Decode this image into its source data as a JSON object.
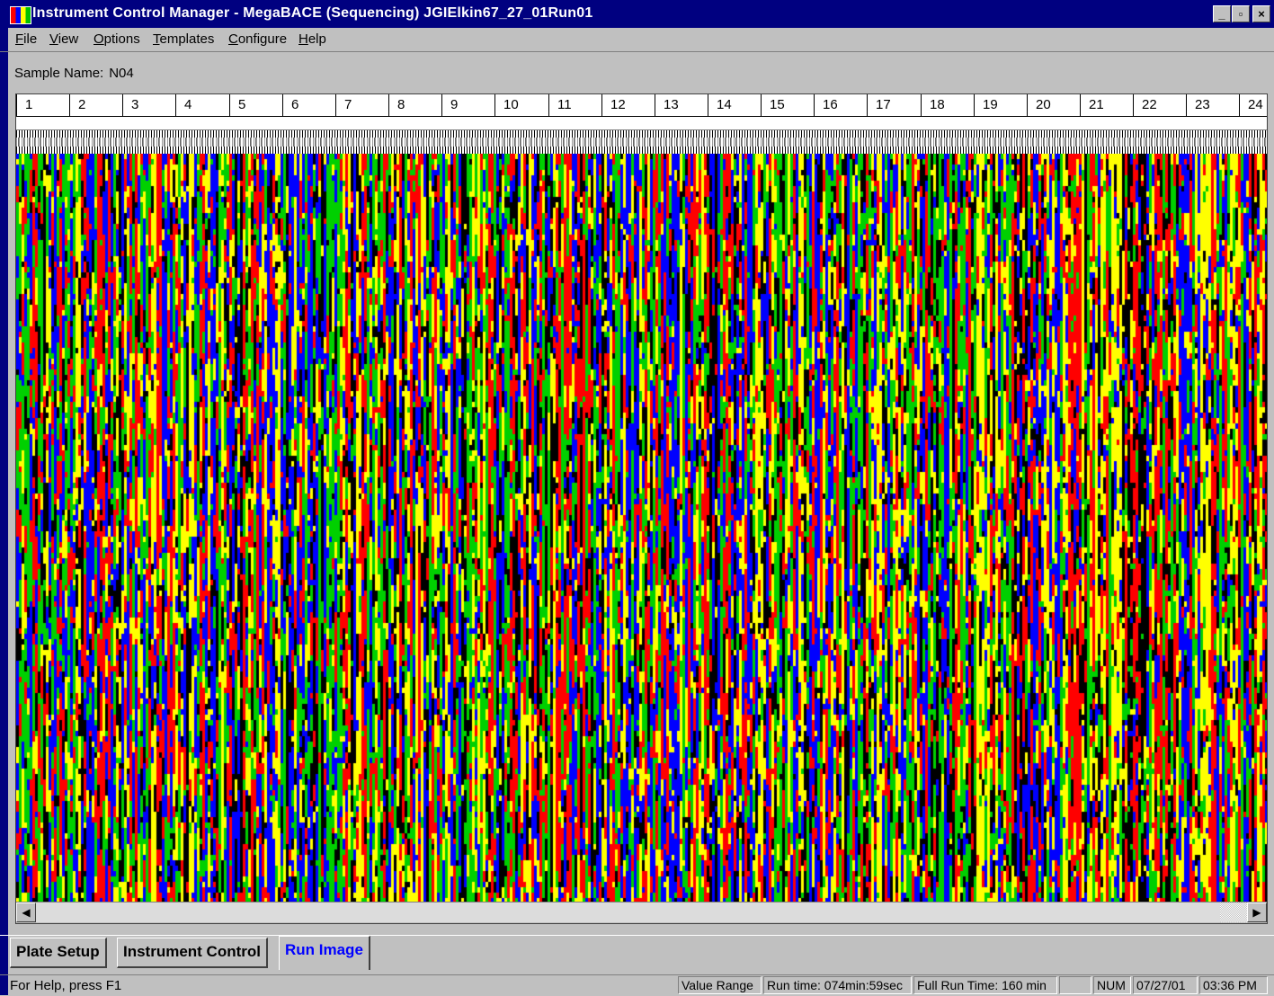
{
  "window": {
    "title": "Instrument Control Manager - MegaBACE (Sequencing) JGIElkin67_27_01Run01",
    "minimize_glyph": "_",
    "restore_glyph": "▫",
    "close_glyph": "×"
  },
  "menu": [
    {
      "accel": "F",
      "rest": "ile"
    },
    {
      "accel": "V",
      "rest": "iew"
    },
    {
      "accel": "O",
      "rest": "ptions"
    },
    {
      "accel": "T",
      "rest": "emplates"
    },
    {
      "accel": "C",
      "rest": "onfigure"
    },
    {
      "accel": "H",
      "rest": "elp"
    }
  ],
  "sample": {
    "label": "Sample Name:",
    "value": "N04"
  },
  "capillaries": [
    "1",
    "2",
    "3",
    "4",
    "5",
    "6",
    "7",
    "8",
    "9",
    "10",
    "11",
    "12",
    "13",
    "14",
    "15",
    "16",
    "17",
    "18",
    "19",
    "20",
    "21",
    "22",
    "23",
    "24"
  ],
  "run_image": {
    "channel_colors": [
      "#ff0000",
      "#0000ff",
      "#ffff00",
      "#00d000",
      "#000000"
    ]
  },
  "scrollbar": {
    "left_arrow": "◀",
    "right_arrow": "▶"
  },
  "tabs": [
    {
      "label": "Plate Setup",
      "active": false
    },
    {
      "label": "Instrument Control",
      "active": false
    },
    {
      "label": "Run Image",
      "active": true
    }
  ],
  "status": {
    "help": "For Help, press F1",
    "value_range": "Value Range",
    "run_time": "Run time: 074min:59sec",
    "full_run_time": "Full Run Time: 160 min",
    "blank": "",
    "num": "NUM",
    "date": "07/27/01",
    "time": "03:36  PM"
  }
}
